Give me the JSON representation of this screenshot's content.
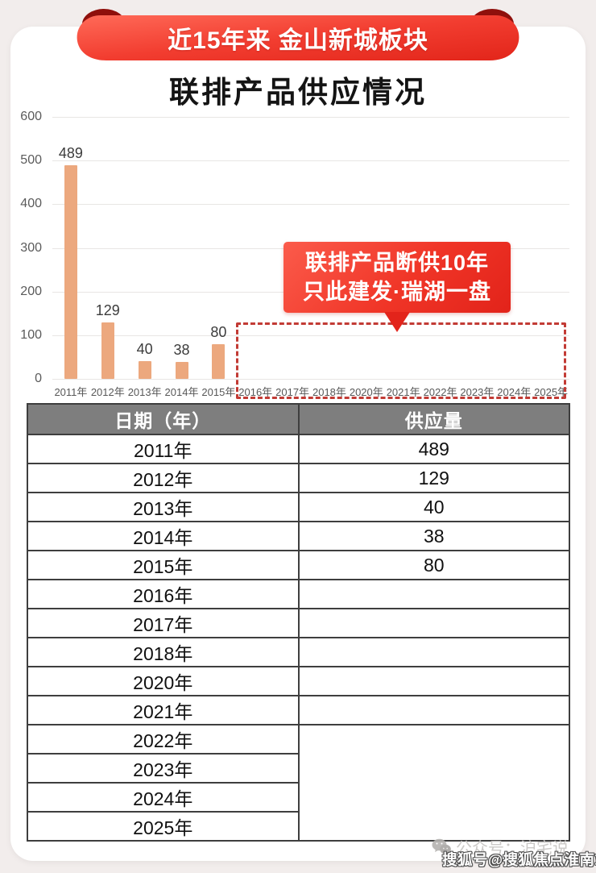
{
  "banner": {
    "ribbon_text": "近15年来 金山新城板块",
    "title": "联排产品供应情况"
  },
  "chart_data": {
    "type": "bar",
    "title": "近15年来金山新城板块联排产品供应情况",
    "categories": [
      "2011年",
      "2012年",
      "2013年",
      "2014年",
      "2015年",
      "2016年",
      "2017年",
      "2018年",
      "2020年",
      "2021年",
      "2022年",
      "2023年",
      "2024年",
      "2025年"
    ],
    "values": [
      489,
      129,
      40,
      38,
      80,
      null,
      null,
      null,
      null,
      null,
      null,
      null,
      null,
      null
    ],
    "xlabel": "",
    "ylabel": "",
    "ylim": [
      0,
      600
    ],
    "yticks": [
      0,
      100,
      200,
      300,
      400,
      500,
      600
    ],
    "grid": true,
    "legend": "none",
    "bar_color": "#ECA87E",
    "annotation": {
      "line1": "联排产品断供10年",
      "line2": "只此建发·瑞湖一盘"
    }
  },
  "table": {
    "headers": [
      "日期（年）",
      "供应量"
    ],
    "rows": [
      [
        "2011年",
        "489"
      ],
      [
        "2012年",
        "129"
      ],
      [
        "2013年",
        "40"
      ],
      [
        "2014年",
        "38"
      ],
      [
        "2015年",
        "80"
      ],
      [
        "2016年",
        ""
      ],
      [
        "2017年",
        ""
      ],
      [
        "2018年",
        ""
      ],
      [
        "2020年",
        ""
      ],
      [
        "2021年",
        ""
      ],
      [
        "2022年",
        ""
      ],
      [
        "2023年",
        ""
      ],
      [
        "2024年",
        ""
      ],
      [
        "2025年",
        ""
      ]
    ],
    "supply_merged_from_index": 10
  },
  "watermarks": {
    "wechat_label": "公众号：沪宅说",
    "sohu_label": "搜狐号@搜狐焦点淮南站"
  },
  "colors": {
    "ribbon_red": "#F23D30",
    "ribbon_fold_dark_red": "#8F100C",
    "callout_red": "#E8281C",
    "dashed_border_red": "#C23B35",
    "bar_peach": "#ECA87E",
    "table_header_gray": "#7E7E7E",
    "table_border_gray": "#3E3E3E",
    "page_background": "#F2EDEC"
  }
}
